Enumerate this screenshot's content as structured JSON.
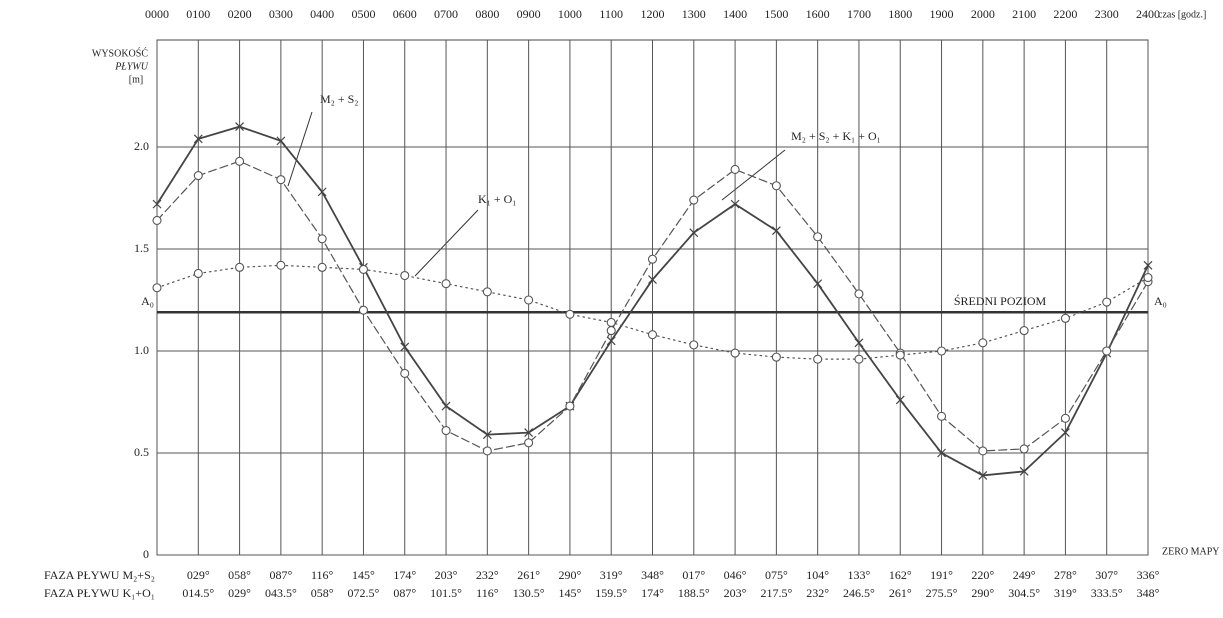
{
  "chart_data": {
    "type": "line",
    "categories": [
      "0000",
      "0100",
      "0200",
      "0300",
      "0400",
      "0500",
      "0600",
      "0700",
      "0800",
      "0900",
      "1000",
      "1100",
      "1200",
      "1300",
      "1400",
      "1500",
      "1600",
      "1700",
      "1800",
      "1900",
      "2000",
      "2100",
      "2200",
      "2300",
      "2400"
    ],
    "x_label": "czas [godz.]",
    "y_label": [
      "WYSOKOŚĆ",
      "PŁYWU",
      "[m]"
    ],
    "ylim": [
      0,
      2.5
    ],
    "yticks": [
      0,
      0.5,
      {
        "value": 1,
        "label": "1.0"
      },
      1.5,
      {
        "value": 2,
        "label": "2.0"
      }
    ],
    "grid": true,
    "series": [
      {
        "name": "M₂ + S₂ + K₁ + O₁",
        "color": "#444",
        "dash": "solid",
        "marker": "x",
        "values": [
          1.72,
          2.04,
          2.1,
          2.03,
          1.78,
          1.41,
          1.02,
          0.73,
          0.59,
          0.6,
          0.73,
          1.05,
          1.35,
          1.58,
          1.72,
          1.59,
          1.33,
          1.04,
          0.76,
          0.5,
          0.39,
          0.41,
          0.6,
          0.99,
          1.42
        ]
      },
      {
        "name": "M₂ + S₂",
        "color": "#555",
        "dash": "dashed",
        "marker": "circle",
        "values": [
          1.64,
          1.86,
          1.93,
          1.84,
          1.55,
          1.2,
          0.89,
          0.61,
          0.51,
          0.55,
          0.73,
          1.1,
          1.45,
          1.74,
          1.89,
          1.81,
          1.56,
          1.28,
          0.99,
          0.68,
          0.51,
          0.52,
          0.67,
          1.0,
          1.34
        ]
      },
      {
        "name": "K₁ + O₁",
        "color": "#555",
        "dash": "dotted",
        "marker": "circle",
        "values": [
          1.31,
          1.38,
          1.41,
          1.42,
          1.41,
          1.4,
          1.37,
          1.33,
          1.29,
          1.25,
          1.18,
          1.14,
          1.08,
          1.03,
          0.99,
          0.97,
          0.96,
          0.96,
          0.98,
          1.0,
          1.04,
          1.1,
          1.16,
          1.24,
          1.36
        ]
      }
    ],
    "mean_level": {
      "value": 1.19,
      "label": "ŚREDNI POZIOM",
      "end_label": "A₀"
    },
    "zero_label": "ZERO MAPY",
    "phase_rows": [
      {
        "label": "FAZA PŁYWU M₂+S₂",
        "values": [
          null,
          "029°",
          "058°",
          "087°",
          "116°",
          "145°",
          "174°",
          "203°",
          "232°",
          "261°",
          "290°",
          "319°",
          "348°",
          "017°",
          "046°",
          "075°",
          "104°",
          "133°",
          "162°",
          "191°",
          "220°",
          "249°",
          "278°",
          "307°",
          "336°"
        ]
      },
      {
        "label": "FAZA PŁYWU K₁+O₁",
        "values": [
          null,
          "014.5°",
          "029°",
          "043.5°",
          "058°",
          "072.5°",
          "087°",
          "101.5°",
          "116°",
          "130.5°",
          "145°",
          "159.5°",
          "174°",
          "188.5°",
          "203°",
          "217.5°",
          "232°",
          "246.5°",
          "261°",
          "275.5°",
          "290°",
          "304.5°",
          "319°",
          "333.5°",
          "348°"
        ]
      }
    ]
  }
}
